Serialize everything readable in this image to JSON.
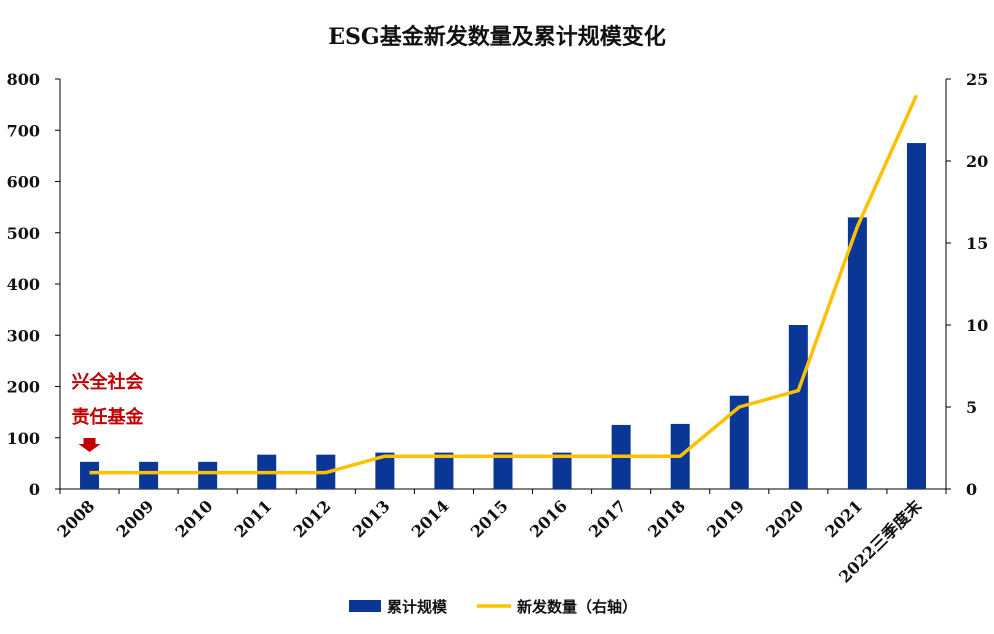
{
  "chart_data": {
    "type": "bar",
    "title": "ESG基金新发数量及累计规模变化",
    "categories": [
      "2008",
      "2009",
      "2010",
      "2011",
      "2012",
      "2013",
      "2014",
      "2015",
      "2016",
      "2017",
      "2018",
      "2019",
      "2020",
      "2021",
      "2022三季度末"
    ],
    "series": [
      {
        "name": "累计规模",
        "type": "bar",
        "axis": "left",
        "color": "#0a3696",
        "values": [
          53,
          53,
          53,
          67,
          67,
          71,
          71,
          71,
          71,
          125,
          127,
          182,
          320,
          530,
          675
        ]
      },
      {
        "name": "新发数量（右轴）",
        "type": "line",
        "axis": "right",
        "color": "#ffc000",
        "values": [
          1,
          1,
          1,
          1,
          1,
          2,
          2,
          2,
          2,
          2,
          2,
          5,
          6,
          16,
          24
        ]
      }
    ],
    "y_left": {
      "min": 0,
      "max": 800,
      "ticks": [
        "0",
        "100",
        "200",
        "300",
        "400",
        "500",
        "600",
        "700",
        "800"
      ]
    },
    "y_right": {
      "min": 0,
      "max": 25,
      "ticks": [
        "0",
        "5",
        "10",
        "15",
        "20",
        "25"
      ]
    },
    "grid": false,
    "legend_position": "bottom",
    "annotation": {
      "lines": [
        "兴全社会",
        "责任基金"
      ],
      "color": "#c00000",
      "category": "2008"
    }
  }
}
